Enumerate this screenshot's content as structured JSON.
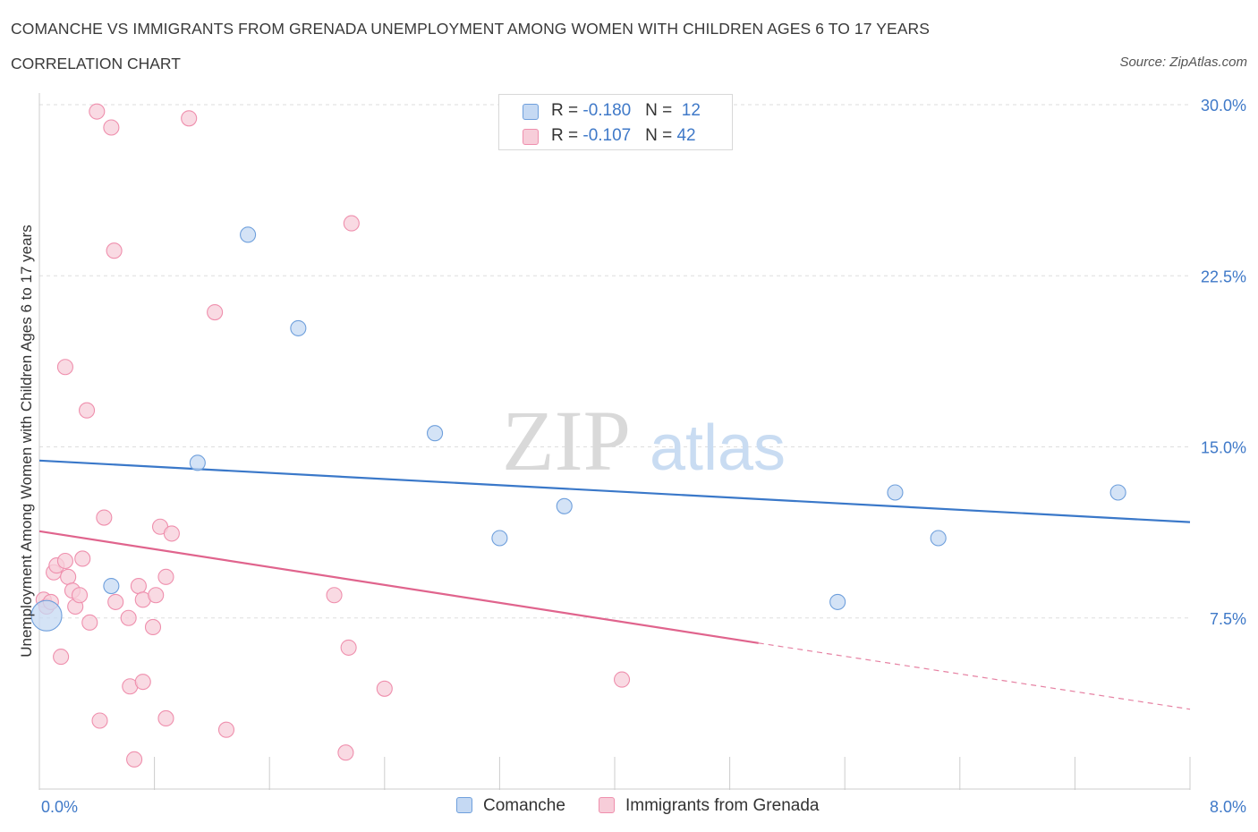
{
  "header": {
    "title": "COMANCHE VS IMMIGRANTS FROM GRENADA UNEMPLOYMENT AMONG WOMEN WITH CHILDREN AGES 6 TO 17 YEARS",
    "subtitle": "CORRELATION CHART",
    "source": "Source: ZipAtlas.com"
  },
  "watermark": {
    "zip": "ZIP",
    "atlas": "atlas"
  },
  "legend_top": {
    "rows": [
      {
        "r_label": "R = ",
        "r_value": "-0.180",
        "n_label": "N = ",
        "n_value": "12"
      },
      {
        "r_label": "R = ",
        "r_value": "-0.107",
        "n_label": "N = ",
        "n_value": "42"
      }
    ]
  },
  "chart_data": {
    "type": "scatter",
    "title": "COMANCHE VS IMMIGRANTS FROM GRENADA UNEMPLOYMENT AMONG WOMEN WITH CHILDREN AGES 6 TO 17 YEARS",
    "ylabel": "Unemployment Among Women with Children Ages 6 to 17 years",
    "xlabel": "",
    "xlim": [
      0,
      8
    ],
    "ylim": [
      0,
      30
    ],
    "x_tick_labels": [
      {
        "value": 0,
        "label": "0.0%"
      },
      {
        "value": 8,
        "label": "8.0%"
      }
    ],
    "y_tick_labels": [
      {
        "value": 7.5,
        "label": "7.5%"
      },
      {
        "value": 15,
        "label": "15.0%"
      },
      {
        "value": 22.5,
        "label": "22.5%"
      },
      {
        "value": 30,
        "label": "30.0%"
      }
    ],
    "grid": true,
    "legend_position": "bottom",
    "series": [
      {
        "name": "Comanche",
        "color": "#6e9fdc",
        "fill": "#c5d9f3",
        "r": -0.18,
        "n": 12,
        "points": [
          {
            "x": 0.05,
            "y": 7.6,
            "big": true
          },
          {
            "x": 0.5,
            "y": 8.9
          },
          {
            "x": 1.1,
            "y": 14.3
          },
          {
            "x": 1.45,
            "y": 24.3
          },
          {
            "x": 1.8,
            "y": 20.2
          },
          {
            "x": 2.75,
            "y": 15.6
          },
          {
            "x": 3.2,
            "y": 11.0
          },
          {
            "x": 3.65,
            "y": 12.4
          },
          {
            "x": 5.55,
            "y": 8.2
          },
          {
            "x": 5.95,
            "y": 13.0
          },
          {
            "x": 6.25,
            "y": 11.0
          },
          {
            "x": 7.5,
            "y": 13.0
          }
        ],
        "trend": {
          "x0": 0,
          "y0": 14.4,
          "x1": 8,
          "y1": 11.7
        }
      },
      {
        "name": "Immigrants from Grenada",
        "color": "#ef8fad",
        "fill": "#f7cdd9",
        "r": -0.107,
        "n": 42,
        "points": [
          {
            "x": 0.03,
            "y": 8.3
          },
          {
            "x": 0.05,
            "y": 8.0
          },
          {
            "x": 0.08,
            "y": 8.2
          },
          {
            "x": 0.1,
            "y": 9.5
          },
          {
            "x": 0.12,
            "y": 9.8
          },
          {
            "x": 0.15,
            "y": 5.8
          },
          {
            "x": 0.18,
            "y": 10.0
          },
          {
            "x": 0.18,
            "y": 18.5
          },
          {
            "x": 0.2,
            "y": 9.3
          },
          {
            "x": 0.23,
            "y": 8.7
          },
          {
            "x": 0.25,
            "y": 8.0
          },
          {
            "x": 0.28,
            "y": 8.5
          },
          {
            "x": 0.3,
            "y": 10.1
          },
          {
            "x": 0.33,
            "y": 16.6
          },
          {
            "x": 0.35,
            "y": 7.3
          },
          {
            "x": 0.4,
            "y": 29.7
          },
          {
            "x": 0.42,
            "y": 3.0
          },
          {
            "x": 0.45,
            "y": 11.9
          },
          {
            "x": 0.5,
            "y": 29.0
          },
          {
            "x": 0.52,
            "y": 23.6
          },
          {
            "x": 0.53,
            "y": 8.2
          },
          {
            "x": 0.62,
            "y": 7.5
          },
          {
            "x": 0.63,
            "y": 4.5
          },
          {
            "x": 0.66,
            "y": 1.3
          },
          {
            "x": 0.69,
            "y": 8.9
          },
          {
            "x": 0.72,
            "y": 4.7
          },
          {
            "x": 0.72,
            "y": 8.3
          },
          {
            "x": 0.79,
            "y": 7.1
          },
          {
            "x": 0.81,
            "y": 8.5
          },
          {
            "x": 0.84,
            "y": 11.5
          },
          {
            "x": 0.88,
            "y": 3.1
          },
          {
            "x": 0.88,
            "y": 9.3
          },
          {
            "x": 0.92,
            "y": 11.2
          },
          {
            "x": 1.04,
            "y": 29.4
          },
          {
            "x": 1.22,
            "y": 20.9
          },
          {
            "x": 1.3,
            "y": 2.6
          },
          {
            "x": 2.05,
            "y": 8.5
          },
          {
            "x": 2.13,
            "y": 1.6
          },
          {
            "x": 2.15,
            "y": 6.2
          },
          {
            "x": 2.17,
            "y": 24.8
          },
          {
            "x": 2.4,
            "y": 4.4
          },
          {
            "x": 4.05,
            "y": 4.8
          }
        ],
        "trend": {
          "x0": 0,
          "y0": 11.3,
          "x1": 5.0,
          "y1": 6.4,
          "dash_to_x": 8,
          "dash_to_y": 3.5
        }
      }
    ]
  }
}
